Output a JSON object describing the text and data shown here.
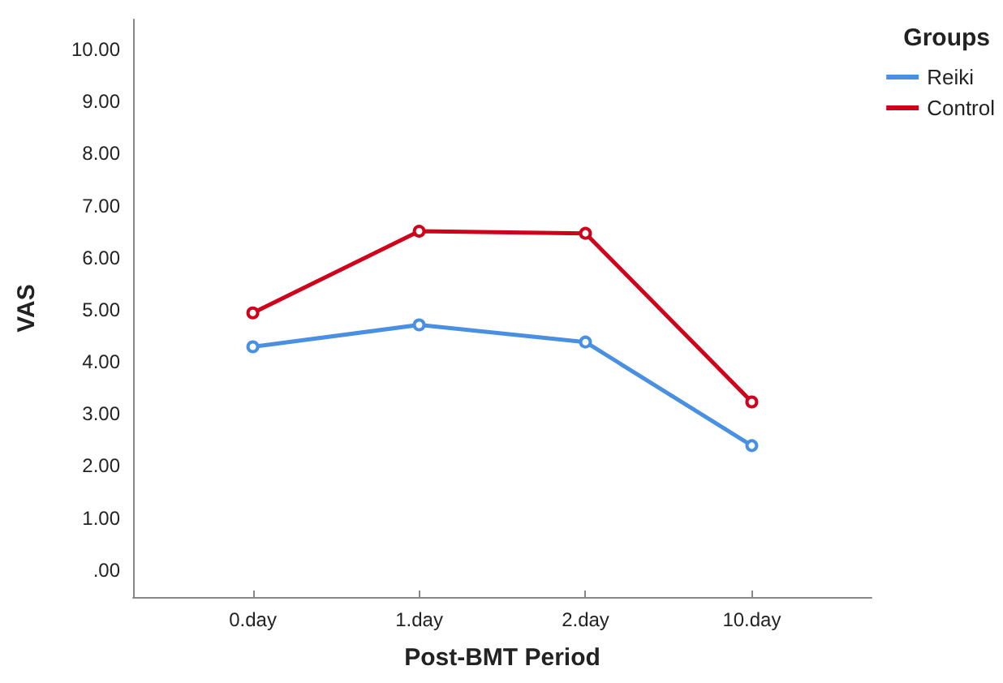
{
  "chart_data": {
    "type": "line",
    "xlabel": "Post-BMT Period",
    "ylabel": "VAS",
    "legend_title": "Groups",
    "legend": "top right",
    "marker": "circle",
    "line_style": "solid",
    "grid": false,
    "categories": [
      "0.day",
      "1.day",
      "2.day",
      "10.day"
    ],
    "series": [
      {
        "name": "Reiki",
        "color": "#4a90e2",
        "values": [
          4.29,
          4.71,
          4.38,
          2.39
        ]
      },
      {
        "name": "Control",
        "color": "#d0021b",
        "values": [
          4.94,
          6.51,
          6.47,
          3.23
        ]
      }
    ],
    "ylim": [
      -0.52,
      10.58
    ],
    "yticks": [
      {
        "value": 0,
        "label": ".00"
      },
      {
        "value": 1,
        "label": "1.00"
      },
      {
        "value": 2,
        "label": "2.00"
      },
      {
        "value": 3,
        "label": "3.00"
      },
      {
        "value": 4,
        "label": "4.00"
      },
      {
        "value": 5,
        "label": "5.00"
      },
      {
        "value": 6,
        "label": "6.00"
      },
      {
        "value": 7,
        "label": "7.00"
      },
      {
        "value": 8,
        "label": "8.00"
      },
      {
        "value": 9,
        "label": "9.00"
      },
      {
        "value": 10,
        "label": "10.00"
      }
    ]
  }
}
